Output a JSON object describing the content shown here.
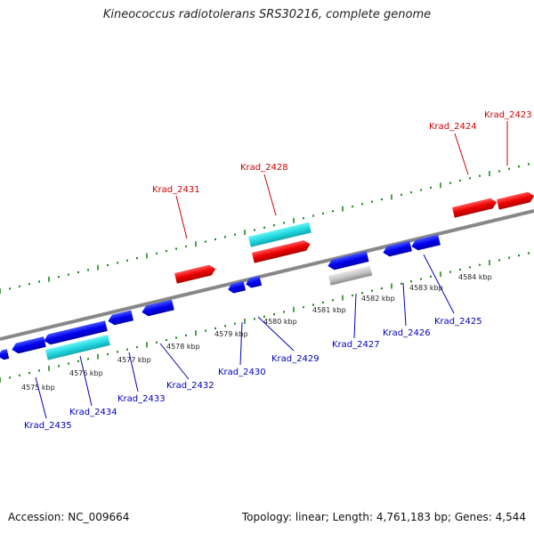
{
  "title": "Kineococcus radiotolerans SRS30216, complete genome",
  "footer": {
    "accession": "Accession: NC_009664",
    "stats": "Topology: linear; Length: 4,761,183 bp; Genes: 4,544"
  },
  "colors": {
    "highlight_gene": "#e00000",
    "gene": "#0000e0",
    "rna": "#20d0d8",
    "pseudo": "#b8b8b8",
    "label_red": "#cc0000",
    "label_blue": "#0000bb",
    "tick": "#228822",
    "axis": "#888888"
  },
  "scale_labels": [
    "4575 kbp",
    "4576 kbp",
    "4577 kbp",
    "4578 kbp",
    "4579 kbp",
    "4580 kbp",
    "4581 kbp",
    "4582 kbp",
    "4583 kbp",
    "4584 kbp"
  ],
  "genes": [
    {
      "label": "Krad_2423",
      "strand": "top",
      "color": "red"
    },
    {
      "label": "Krad_2424",
      "strand": "top",
      "color": "red"
    },
    {
      "label": "Krad_2428",
      "strand": "top",
      "color": "red"
    },
    {
      "label": "Krad_2431",
      "strand": "top",
      "color": "red"
    },
    {
      "label": "Krad_2425",
      "strand": "bottom",
      "color": "blue"
    },
    {
      "label": "Krad_2426",
      "strand": "bottom",
      "color": "blue"
    },
    {
      "label": "Krad_2427",
      "strand": "bottom",
      "color": "blue"
    },
    {
      "label": "Krad_2429",
      "strand": "bottom",
      "color": "blue"
    },
    {
      "label": "Krad_2430",
      "strand": "bottom",
      "color": "blue"
    },
    {
      "label": "Krad_2432",
      "strand": "bottom",
      "color": "blue"
    },
    {
      "label": "Krad_2433",
      "strand": "bottom",
      "color": "blue"
    },
    {
      "label": "Krad_2434",
      "strand": "bottom",
      "color": "blue"
    },
    {
      "label": "Krad_2435",
      "strand": "bottom",
      "color": "blue"
    }
  ]
}
